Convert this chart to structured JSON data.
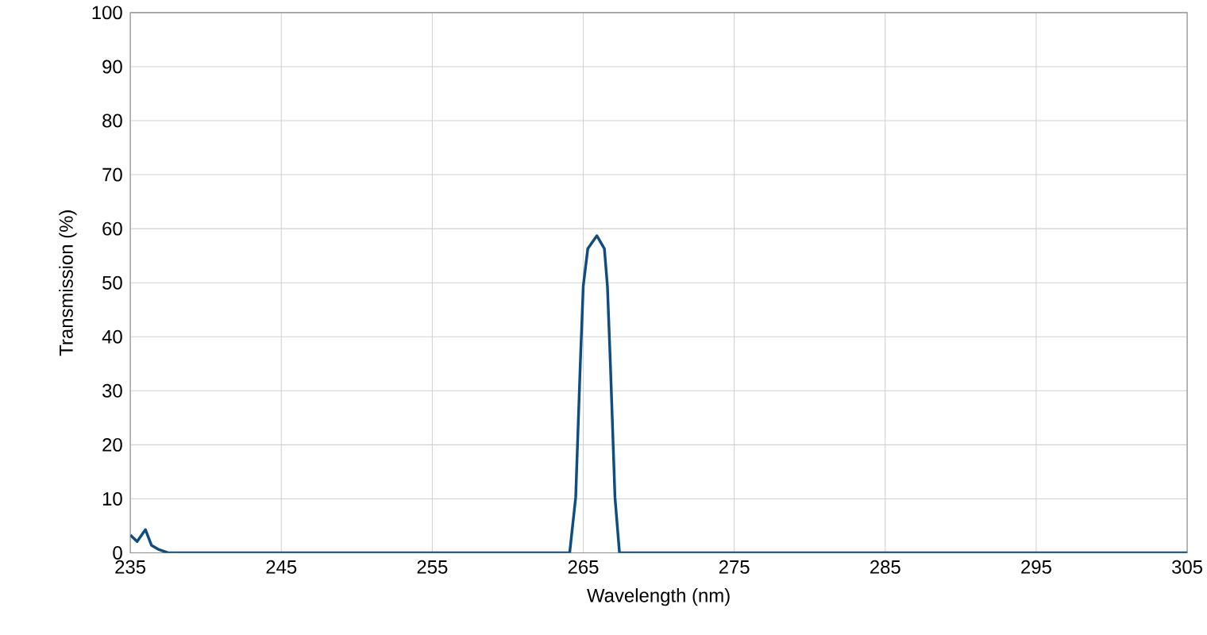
{
  "chart_data": {
    "type": "line",
    "xlabel": "Wavelength (nm)",
    "ylabel": "Transmission (%)",
    "xlim": [
      235,
      305
    ],
    "ylim": [
      0,
      100
    ],
    "xticks": [
      235,
      245,
      255,
      265,
      275,
      285,
      295,
      305
    ],
    "yticks": [
      0,
      10,
      20,
      30,
      40,
      50,
      60,
      70,
      80,
      90,
      100
    ],
    "grid": true,
    "marker": "none",
    "line_style": "solid",
    "series": [
      {
        "color": "#0f4c81",
        "x": [
          235,
          235.45,
          236.0,
          236.4,
          236.9,
          237.5,
          250,
          264.1,
          264.5,
          264.8,
          265.0,
          265.3,
          265.9,
          266.4,
          266.6,
          266.8,
          267.1,
          267.4,
          280,
          305
        ],
        "values": [
          3.3,
          2.1,
          4.3,
          1.4,
          0.6,
          0,
          0,
          0,
          10.3,
          34.7,
          49.4,
          56.3,
          58.7,
          56.3,
          49.4,
          34.7,
          10.3,
          0,
          0,
          0
        ]
      }
    ]
  }
}
